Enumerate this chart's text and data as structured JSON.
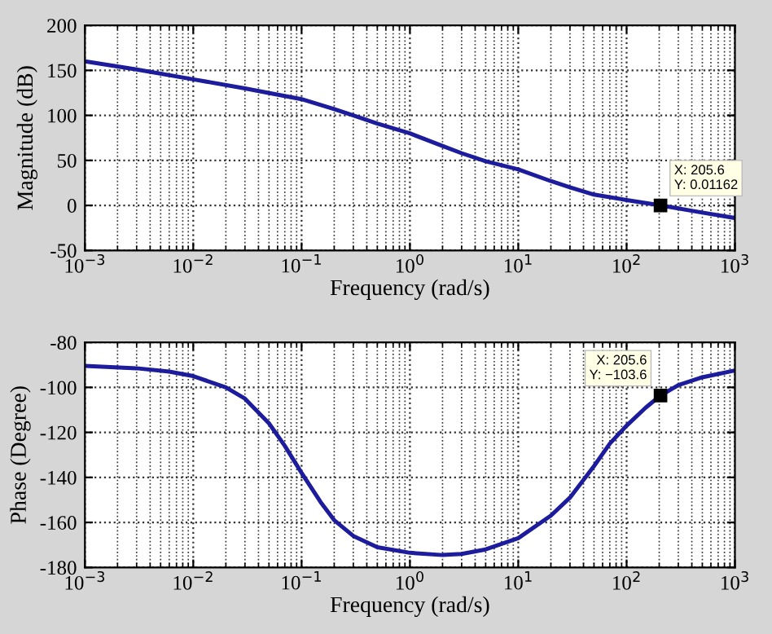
{
  "chart_data": [
    {
      "type": "line",
      "xlabel": "Frequency (rad/s)",
      "ylabel": "Magnitude (dB)",
      "log": "x",
      "grid": true,
      "legend": false,
      "marker": "none",
      "line_style": "solid",
      "xlim": [
        0.001,
        1000
      ],
      "xticks": [
        {
          "value": 0.001,
          "label": "10$^{−3}$"
        },
        {
          "value": 0.01,
          "label": "10$^{−2}$"
        },
        {
          "value": 0.1,
          "label": "10$^{−1}$"
        },
        {
          "value": 1,
          "label": "10$^{0}$"
        },
        {
          "value": 10,
          "label": "10$^{1}$"
        },
        {
          "value": 100,
          "label": "10$^{2}$"
        },
        {
          "value": 1000,
          "label": "10$^{3}$"
        }
      ],
      "ylim": [
        -50,
        200
      ],
      "yticks": [
        -50,
        0,
        50,
        100,
        150,
        200
      ],
      "series": [
        {
          "color": "#1c1c9c",
          "x": [
            0.001,
            0.003,
            0.01,
            0.03,
            0.1,
            0.2,
            0.3,
            0.5,
            1,
            2,
            3,
            5,
            10,
            20,
            30,
            50,
            100,
            205.6,
            500,
            1000
          ],
          "values": [
            160,
            151,
            140,
            130,
            118,
            107,
            100,
            91,
            80,
            66,
            58,
            49,
            40,
            27,
            20,
            12,
            6,
            0.01162,
            -8,
            -14
          ]
        }
      ],
      "annotations": [
        {
          "text": "X: 205.6\nY: 0.01162",
          "x": 205.6,
          "y": 0.01162
        }
      ]
    },
    {
      "type": "line",
      "xlabel": "Frequency (rad/s)",
      "ylabel": "Phase (Degree)",
      "log": "x",
      "grid": true,
      "legend": false,
      "marker": "none",
      "line_style": "solid",
      "xlim": [
        0.001,
        1000
      ],
      "xticks": [
        {
          "value": 0.001,
          "label": "10$^{−3}$"
        },
        {
          "value": 0.01,
          "label": "10$^{−2}$"
        },
        {
          "value": 0.1,
          "label": "10$^{−1}$"
        },
        {
          "value": 1,
          "label": "10$^{0}$"
        },
        {
          "value": 10,
          "label": "10$^{1}$"
        },
        {
          "value": 100,
          "label": "10$^{2}$"
        },
        {
          "value": 1000,
          "label": "10$^{3}$"
        }
      ],
      "ylim": [
        -180,
        -80
      ],
      "yticks": [
        -180,
        -160,
        -140,
        -120,
        -100,
        -80
      ],
      "series": [
        {
          "color": "#1c1c9c",
          "x": [
            0.001,
            0.003,
            0.006,
            0.01,
            0.02,
            0.03,
            0.05,
            0.07,
            0.1,
            0.15,
            0.2,
            0.3,
            0.5,
            1,
            2,
            3,
            5,
            10,
            20,
            30,
            50,
            70,
            100,
            150,
            205.6,
            300,
            500,
            1000
          ],
          "values": [
            -90.5,
            -91.5,
            -93,
            -95,
            -100,
            -105,
            -116,
            -126,
            -138,
            -151,
            -159,
            -166,
            -171,
            -173.5,
            -174.5,
            -174,
            -172,
            -167,
            -157,
            -149,
            -135,
            -125,
            -117,
            -109,
            -103.6,
            -99,
            -95.5,
            -92.5
          ]
        }
      ],
      "annotations": [
        {
          "text": "X: 205.6\nY: −103.6",
          "x": 205.6,
          "y": -103.6
        }
      ]
    }
  ]
}
